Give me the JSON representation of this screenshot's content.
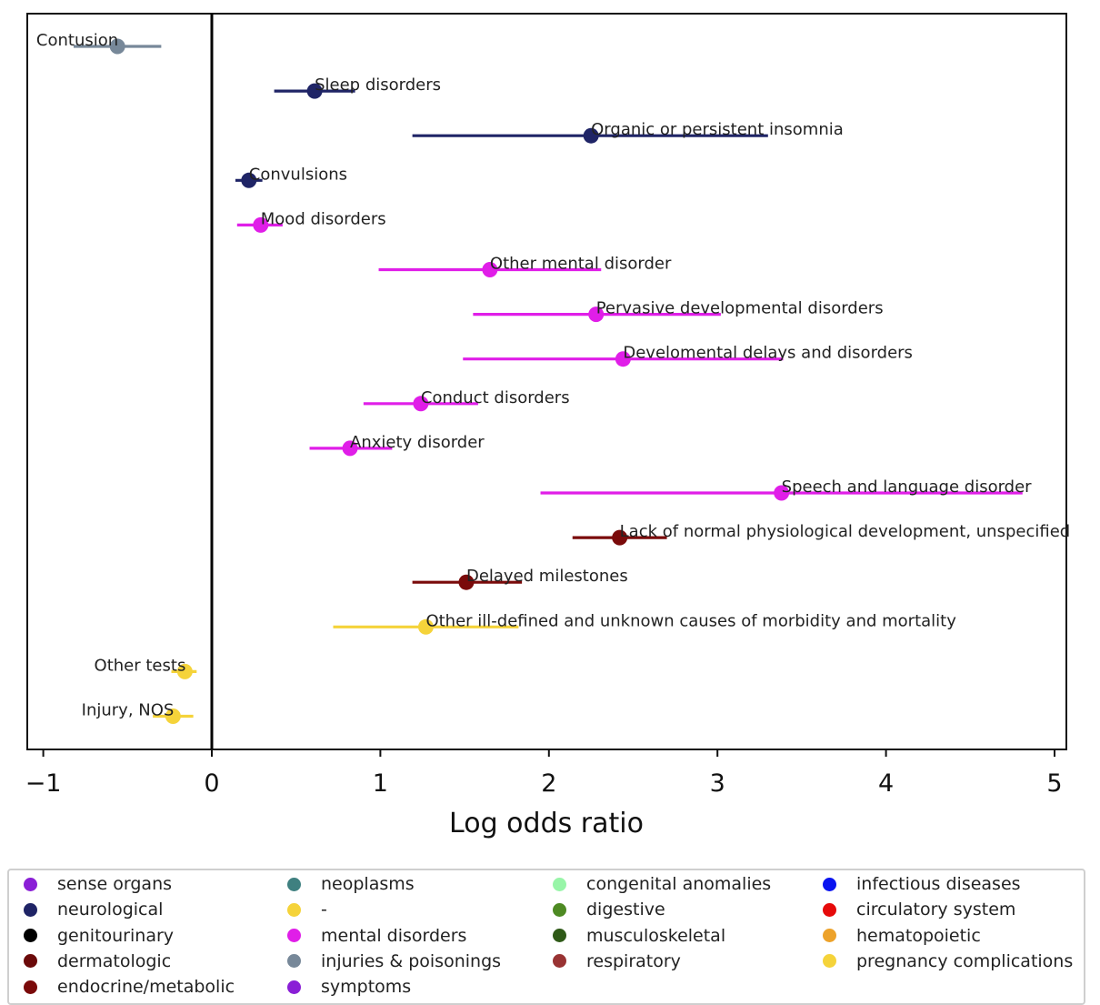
{
  "chart_data": {
    "type": "scatter",
    "title": "",
    "xlabel": "Log odds ratio",
    "ylabel": "",
    "xlim": [
      -1.1,
      5.1
    ],
    "xticks": [
      -1,
      0,
      1,
      2,
      3,
      4,
      5
    ],
    "xtick_labels": [
      "−1",
      "0",
      "1",
      "2",
      "3",
      "4",
      "5"
    ],
    "reference_line_x": 0,
    "grid": false,
    "points": [
      {
        "label": "Contusion",
        "estimate": -0.56,
        "ci": [
          -0.82,
          -0.3
        ],
        "color": "#778899",
        "label_side": "left"
      },
      {
        "label": "Sleep disorders",
        "estimate": 0.61,
        "ci": [
          0.37,
          0.85
        ],
        "color": "#1f2466",
        "label_side": "right"
      },
      {
        "label": "Organic or persistent insomnia",
        "estimate": 2.25,
        "ci": [
          1.19,
          3.3
        ],
        "color": "#1f2466",
        "label_side": "right"
      },
      {
        "label": "Convulsions",
        "estimate": 0.22,
        "ci": [
          0.14,
          0.3
        ],
        "color": "#1f2466",
        "label_side": "right"
      },
      {
        "label": "Mood disorders",
        "estimate": 0.29,
        "ci": [
          0.15,
          0.42
        ],
        "color": "#e01ee8",
        "label_side": "right"
      },
      {
        "label": "Other mental disorder",
        "estimate": 1.65,
        "ci": [
          0.99,
          2.31
        ],
        "color": "#e01ee8",
        "label_side": "right"
      },
      {
        "label": "Pervasive developmental disorders",
        "estimate": 2.28,
        "ci": [
          1.55,
          3.02
        ],
        "color": "#e01ee8",
        "label_side": "right"
      },
      {
        "label": "Develomental delays and disorders",
        "estimate": 2.44,
        "ci": [
          1.49,
          3.39
        ],
        "color": "#e01ee8",
        "label_side": "right"
      },
      {
        "label": "Conduct disorders",
        "estimate": 1.24,
        "ci": [
          0.9,
          1.58
        ],
        "color": "#e01ee8",
        "label_side": "right"
      },
      {
        "label": "Anxiety disorder",
        "estimate": 0.82,
        "ci": [
          0.58,
          1.07
        ],
        "color": "#e01ee8",
        "label_side": "right"
      },
      {
        "label": "Speech and language disorder",
        "estimate": 3.38,
        "ci": [
          1.95,
          4.81
        ],
        "color": "#e01ee8",
        "label_side": "right"
      },
      {
        "label": "Lack of normal physiological development, unspecified",
        "estimate": 2.42,
        "ci": [
          2.14,
          2.7
        ],
        "color": "#7a0a0a",
        "label_side": "right"
      },
      {
        "label": "Delayed milestones",
        "estimate": 1.51,
        "ci": [
          1.19,
          1.84
        ],
        "color": "#7a0a0a",
        "label_side": "right"
      },
      {
        "label": "Other ill-defined and unknown causes of morbidity and mortality",
        "estimate": 1.27,
        "ci": [
          0.72,
          1.82
        ],
        "color": "#f5d33a",
        "label_side": "right"
      },
      {
        "label": "Other tests",
        "estimate": -0.16,
        "ci": [
          -0.24,
          -0.09
        ],
        "color": "#f5d33a",
        "label_side": "left"
      },
      {
        "label": "Injury, NOS",
        "estimate": -0.23,
        "ci": [
          -0.35,
          -0.11
        ],
        "color": "#f5d33a",
        "label_side": "left"
      }
    ]
  },
  "legend": {
    "placement": "bottom",
    "columns": [
      [
        {
          "label": "sense organs",
          "color": "#8a1fd6"
        },
        {
          "label": "neurological",
          "color": "#1f2466"
        },
        {
          "label": "genitourinary",
          "color": "#000000"
        },
        {
          "label": "dermatologic",
          "color": "#6b0a0a"
        },
        {
          "label": "endocrine/metabolic",
          "color": "#7a0a0a"
        }
      ],
      [
        {
          "label": "neoplasms",
          "color": "#3f8080"
        },
        {
          "label": "-",
          "color": "#f5d33a"
        },
        {
          "label": "mental disorders",
          "color": "#e01ee8"
        },
        {
          "label": "injuries & poisonings",
          "color": "#778899"
        },
        {
          "label": "symptoms",
          "color": "#8a1fd6"
        }
      ],
      [
        {
          "label": "congenital anomalies",
          "color": "#98f5a8"
        },
        {
          "label": "digestive",
          "color": "#4e8a23"
        },
        {
          "label": "musculoskeletal",
          "color": "#2f5a18"
        },
        {
          "label": "respiratory",
          "color": "#993333"
        }
      ],
      [
        {
          "label": "infectious diseases",
          "color": "#0a14f0"
        },
        {
          "label": "circulatory system",
          "color": "#e60a0a"
        },
        {
          "label": "hematopoietic",
          "color": "#eda22a"
        },
        {
          "label": "pregnancy complications",
          "color": "#f5d33a"
        }
      ]
    ]
  }
}
